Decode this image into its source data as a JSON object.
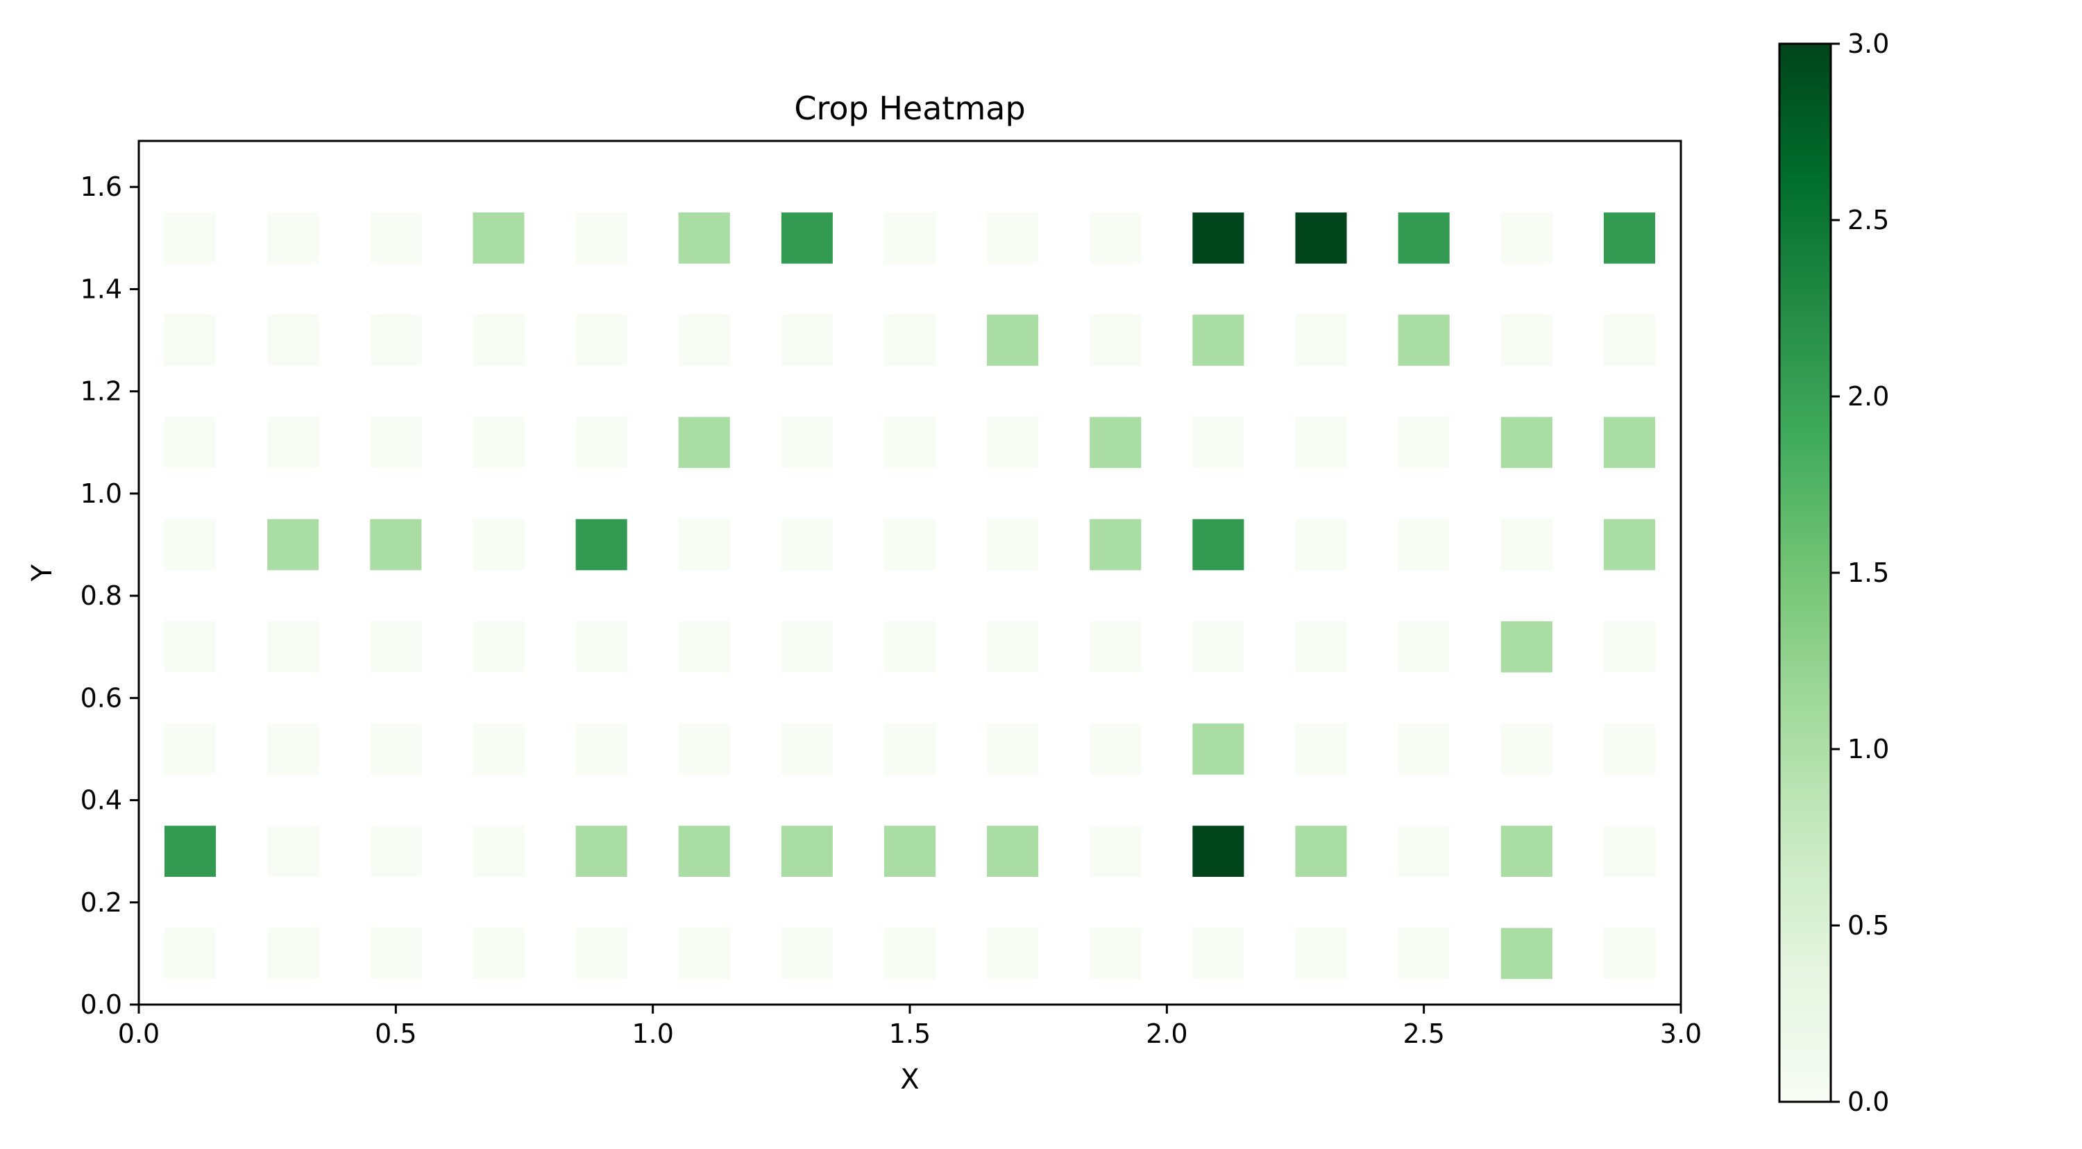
{
  "chart_data": {
    "type": "heatmap",
    "title": "Crop Heatmap",
    "xlabel": "X",
    "ylabel": "Y",
    "xlim": [
      0.0,
      3.0
    ],
    "ylim": [
      0.0,
      1.69
    ],
    "x_ticks": [
      {
        "value": 0.0,
        "label": "0.0"
      },
      {
        "value": 0.5,
        "label": "0.5"
      },
      {
        "value": 1.0,
        "label": "1.0"
      },
      {
        "value": 1.5,
        "label": "1.5"
      },
      {
        "value": 2.0,
        "label": "2.0"
      },
      {
        "value": 2.5,
        "label": "2.5"
      },
      {
        "value": 3.0,
        "label": "3.0"
      }
    ],
    "y_ticks": [
      {
        "value": 0.0,
        "label": "0.0"
      },
      {
        "value": 0.2,
        "label": "0.2"
      },
      {
        "value": 0.4,
        "label": "0.4"
      },
      {
        "value": 0.6,
        "label": "0.6"
      },
      {
        "value": 0.8,
        "label": "0.8"
      },
      {
        "value": 1.0,
        "label": "1.0"
      },
      {
        "value": 1.2,
        "label": "1.2"
      },
      {
        "value": 1.4,
        "label": "1.4"
      },
      {
        "value": 1.6,
        "label": "1.6"
      }
    ],
    "x": [
      0.1,
      0.3,
      0.5,
      0.7,
      0.9,
      1.1,
      1.3,
      1.5,
      1.7,
      1.9,
      2.1,
      2.3,
      2.5,
      2.7,
      2.9
    ],
    "y": [
      0.1,
      0.3,
      0.5,
      0.7,
      0.9,
      1.1,
      1.3,
      1.5
    ],
    "cell_width": 0.1,
    "cell_height": 0.1,
    "values": [
      [
        0,
        0,
        0,
        0,
        0,
        0,
        0,
        0,
        0,
        0,
        0,
        0,
        0,
        1,
        0
      ],
      [
        2,
        0,
        0,
        0,
        1,
        1,
        1,
        1,
        1,
        0,
        3,
        1,
        0,
        1,
        0
      ],
      [
        0,
        0,
        0,
        0,
        0,
        0,
        0,
        0,
        0,
        0,
        1,
        0,
        0,
        0,
        0
      ],
      [
        0,
        0,
        0,
        0,
        0,
        0,
        0,
        0,
        0,
        0,
        0,
        0,
        0,
        1,
        0
      ],
      [
        0,
        1,
        1,
        0,
        2,
        0,
        0,
        0,
        0,
        1,
        2,
        0,
        0,
        0,
        1
      ],
      [
        0,
        0,
        0,
        0,
        0,
        1,
        0,
        0,
        0,
        1,
        0,
        0,
        0,
        1,
        1
      ],
      [
        0,
        0,
        0,
        0,
        0,
        0,
        0,
        0,
        1,
        0,
        1,
        0,
        1,
        0,
        0
      ],
      [
        0,
        0,
        0,
        1,
        0,
        1,
        2,
        0,
        0,
        0,
        3,
        3,
        2,
        0,
        2
      ]
    ],
    "colormap": "Greens",
    "value_range": [
      0,
      3
    ],
    "colors": [
      "#f7fcf5",
      "#aadda4",
      "#329b51",
      "#00441b"
    ],
    "colorbar": {
      "ticks": [
        {
          "value": 0.0,
          "label": "0.0"
        },
        {
          "value": 0.5,
          "label": "0.5"
        },
        {
          "value": 1.0,
          "label": "1.0"
        },
        {
          "value": 1.5,
          "label": "1.5"
        },
        {
          "value": 2.0,
          "label": "2.0"
        },
        {
          "value": 2.5,
          "label": "2.5"
        },
        {
          "value": 3.0,
          "label": "3.0"
        }
      ],
      "stops": [
        "#f7fcf5",
        "#e5f5e0",
        "#c7e9c0",
        "#a1d99b",
        "#74c476",
        "#41ab5d",
        "#238b45",
        "#006d2c",
        "#00441b"
      ]
    },
    "grid": false,
    "legend": "none"
  }
}
